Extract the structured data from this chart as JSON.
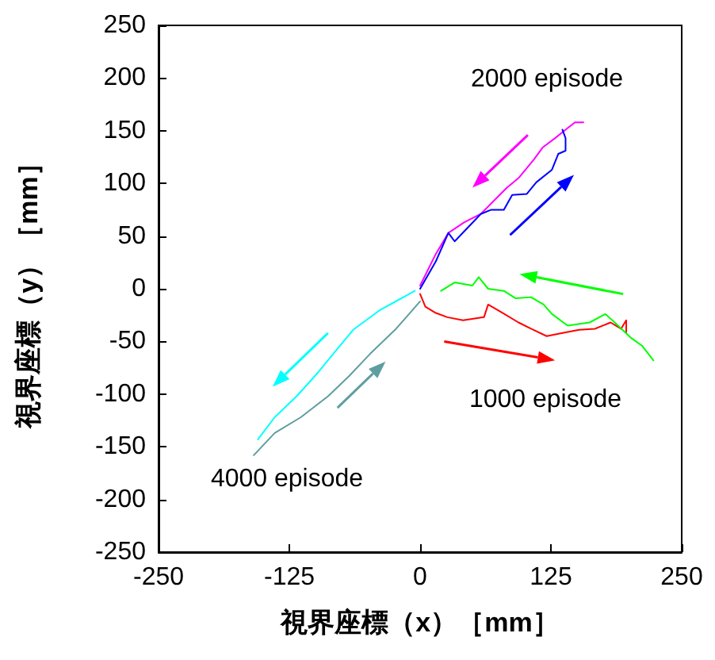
{
  "chart_data": {
    "type": "line",
    "xlabel": "視界座標（x）［mm］",
    "ylabel": "視界座標（y）［mm］",
    "xlim": [
      -250,
      250
    ],
    "xticks": [
      -250,
      -125,
      0,
      125,
      250
    ],
    "ylim": [
      -250,
      250
    ],
    "yticks": [
      -250,
      -200,
      -150,
      -100,
      -50,
      0,
      50,
      100,
      150,
      200,
      250
    ],
    "grid": false,
    "series": [
      {
        "color": "#ff00ff",
        "x": [
          0,
          15,
          27,
          42,
          58,
          73,
          83,
          94,
          109,
          117,
          129,
          139,
          148,
          156
        ],
        "values": [
          3,
          33,
          53,
          63,
          71,
          86,
          96,
          105,
          123,
          134,
          143,
          151,
          158,
          158
        ]
      },
      {
        "color": "#0000ff",
        "x": [
          0,
          15,
          27,
          33,
          58,
          68,
          80,
          88,
          102,
          111,
          126,
          132,
          139,
          139,
          136
        ],
        "values": [
          0,
          26,
          53,
          45,
          71,
          75,
          75,
          89,
          90,
          101,
          113,
          128,
          131,
          143,
          151
        ]
      },
      {
        "color": "#ff0000",
        "x": [
          0,
          5,
          15,
          26,
          41,
          61,
          65,
          79,
          94,
          106,
          121,
          136,
          152,
          167,
          182,
          192,
          197,
          197
        ],
        "values": [
          -5,
          -17,
          -23,
          -27,
          -30,
          -27,
          -15,
          -23,
          -32,
          -38,
          -45,
          -42,
          -39,
          -38,
          -32,
          -38,
          -30,
          -42
        ]
      },
      {
        "color": "#00ff00",
        "x": [
          20,
          33,
          50,
          56,
          65,
          80,
          91,
          106,
          118,
          126,
          141,
          162,
          177,
          186,
          202,
          212,
          223
        ],
        "values": [
          -2,
          6,
          3,
          11,
          0,
          -2,
          -9,
          -8,
          -15,
          -24,
          -35,
          -32,
          -24,
          -32,
          -47,
          -54,
          -68
        ]
      },
      {
        "color": "#00ffff",
        "x": [
          -5,
          -38,
          -64,
          -79,
          -98,
          -118,
          -139,
          -155
        ],
        "values": [
          -2,
          -20,
          -39,
          -57,
          -80,
          -102,
          -122,
          -143
        ]
      },
      {
        "color": "#5f9ea0",
        "x": [
          0,
          -23,
          -48,
          -68,
          -88,
          -114,
          -139,
          -159
        ],
        "values": [
          -12,
          -38,
          -62,
          -83,
          -102,
          -122,
          -137,
          -158
        ]
      }
    ],
    "annotations": [
      "2000 episode",
      "1000 episode",
      "4000 episode"
    ]
  }
}
